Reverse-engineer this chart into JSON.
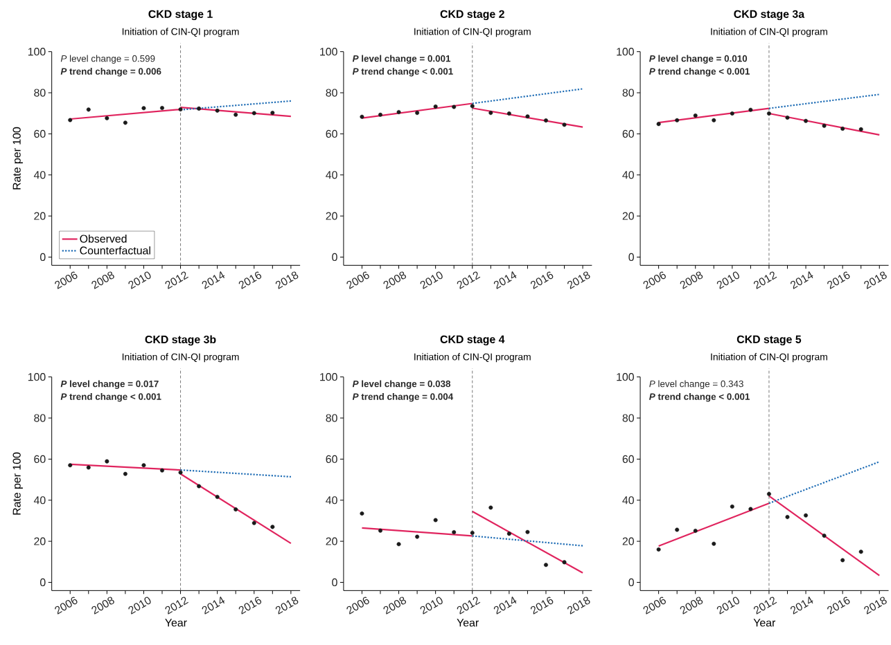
{
  "chart_data": [
    {
      "type": "line",
      "title": "CKD stage 1",
      "ylabel": "Rate per 100",
      "xlim": [
        2005,
        2018.5
      ],
      "ylim": [
        -4,
        100
      ],
      "yticks": [
        0,
        20,
        40,
        60,
        80,
        100
      ],
      "xticks": [
        2006,
        {
          "value": 2007,
          "label": null
        },
        2008,
        {
          "value": 2009,
          "label": null
        },
        2010,
        {
          "value": 2011,
          "label": null
        },
        2012,
        {
          "value": 2013,
          "label": null
        },
        2014,
        {
          "value": 2015,
          "label": null
        },
        2016,
        {
          "value": 2017,
          "label": null
        },
        2018
      ],
      "annotations": [
        "*P* level change = 0.599",
        "***P* trend change = 0.006**"
      ],
      "ref_lines": [
        {
          "axis": "x",
          "value": 2012,
          "label": "Initiation of CIN-QI program",
          "color": "#555555",
          "line_style": "dashed"
        }
      ],
      "legend": "bottom left",
      "series": [
        {
          "type": "scatter",
          "color": "#1a1a1a",
          "marker": "circle",
          "x": [
            2006,
            2007,
            2008,
            2009,
            2010,
            2011,
            2012,
            2013,
            2014,
            2015,
            2016,
            2017
          ],
          "values": [
            66.7,
            71.8,
            67.6,
            65.4,
            72.5,
            72.6,
            71.9,
            72.3,
            71.3,
            69.3,
            70.1,
            70.2
          ]
        },
        {
          "name": "Observed",
          "color": "#e0245e",
          "marker": "none",
          "line_style": "solid",
          "x": [
            2006,
            2012,
            null,
            2012,
            2018
          ],
          "values": [
            67.2,
            71.9,
            null,
            72.9,
            68.5
          ]
        },
        {
          "name": "Counterfactual",
          "color": "#1f6db5",
          "marker": "none",
          "line_style": "dotted",
          "x": [
            2012,
            2018
          ],
          "values": [
            71.7,
            76.0
          ]
        }
      ]
    },
    {
      "type": "line",
      "title": "CKD stage 2",
      "xlim": [
        2005,
        2018.5
      ],
      "ylim": [
        -4,
        100
      ],
      "yticks": [
        0,
        20,
        40,
        60,
        80,
        100
      ],
      "xticks": [
        2006,
        {
          "value": 2007,
          "label": null
        },
        2008,
        {
          "value": 2009,
          "label": null
        },
        2010,
        {
          "value": 2011,
          "label": null
        },
        2012,
        {
          "value": 2013,
          "label": null
        },
        2014,
        {
          "value": 2015,
          "label": null
        },
        2016,
        {
          "value": 2017,
          "label": null
        },
        2018
      ],
      "annotations": [
        "***P* level change = 0.001**",
        "***P* trend change < 0.001**"
      ],
      "ref_lines": [
        {
          "axis": "x",
          "value": 2012,
          "label": "Initiation of CIN-QI program",
          "color": "#555555",
          "line_style": "dashed"
        }
      ],
      "series": [
        {
          "type": "scatter",
          "color": "#1a1a1a",
          "marker": "circle",
          "x": [
            2006,
            2007,
            2008,
            2009,
            2010,
            2011,
            2012,
            2013,
            2014,
            2015,
            2016,
            2017
          ],
          "values": [
            68.3,
            69.3,
            70.6,
            70.2,
            73.3,
            73.1,
            73.5,
            70.2,
            69.9,
            68.5,
            66.5,
            64.4
          ]
        },
        {
          "color": "#e0245e",
          "marker": "none",
          "line_style": "solid",
          "x": [
            2006,
            2012,
            null,
            2012,
            2018
          ],
          "values": [
            67.7,
            74.8,
            null,
            72.5,
            63.3
          ]
        },
        {
          "color": "#1f6db5",
          "marker": "none",
          "line_style": "dotted",
          "x": [
            2012,
            2018
          ],
          "values": [
            74.8,
            81.9
          ]
        }
      ]
    },
    {
      "type": "line",
      "title": "CKD stage 3a",
      "xlim": [
        2005,
        2018.5
      ],
      "ylim": [
        -4,
        100
      ],
      "yticks": [
        0,
        20,
        40,
        60,
        80,
        100
      ],
      "xticks": [
        2006,
        {
          "value": 2007,
          "label": null
        },
        2008,
        {
          "value": 2009,
          "label": null
        },
        2010,
        {
          "value": 2011,
          "label": null
        },
        2012,
        {
          "value": 2013,
          "label": null
        },
        2014,
        {
          "value": 2015,
          "label": null
        },
        2016,
        {
          "value": 2017,
          "label": null
        },
        2018
      ],
      "annotations": [
        "***P* level change = 0.010**",
        "***P* trend change < 0.001**"
      ],
      "ref_lines": [
        {
          "axis": "x",
          "value": 2012,
          "label": "Initiation of CIN-QI program",
          "color": "#555555",
          "line_style": "dashed"
        }
      ],
      "series": [
        {
          "type": "scatter",
          "color": "#1a1a1a",
          "marker": "circle",
          "x": [
            2006,
            2007,
            2008,
            2009,
            2010,
            2011,
            2012,
            2013,
            2014,
            2015,
            2016,
            2017
          ],
          "values": [
            64.8,
            66.6,
            68.9,
            66.6,
            69.9,
            71.7,
            69.9,
            67.9,
            66.3,
            63.9,
            62.5,
            62.2
          ]
        },
        {
          "color": "#e0245e",
          "marker": "none",
          "line_style": "solid",
          "x": [
            2006,
            2012,
            null,
            2012,
            2018
          ],
          "values": [
            65.5,
            72.4,
            null,
            69.9,
            59.5
          ]
        },
        {
          "color": "#1f6db5",
          "marker": "none",
          "line_style": "dotted",
          "x": [
            2012,
            2018
          ],
          "values": [
            72.4,
            79.2
          ]
        }
      ]
    },
    {
      "type": "line",
      "title": "CKD stage 3b",
      "xlabel": "Year",
      "ylabel": "Rate per 100",
      "xlim": [
        2005,
        2018.5
      ],
      "ylim": [
        -4,
        100
      ],
      "yticks": [
        0,
        20,
        40,
        60,
        80,
        100
      ],
      "xticks": [
        2006,
        {
          "value": 2007,
          "label": null
        },
        2008,
        {
          "value": 2009,
          "label": null
        },
        2010,
        {
          "value": 2011,
          "label": null
        },
        2012,
        {
          "value": 2013,
          "label": null
        },
        2014,
        {
          "value": 2015,
          "label": null
        },
        2016,
        {
          "value": 2017,
          "label": null
        },
        2018
      ],
      "annotations": [
        "***P* level change = 0.017**",
        "***P* trend change < 0.001**"
      ],
      "ref_lines": [
        {
          "axis": "x",
          "value": 2012,
          "label": "Initiation of CIN-QI program",
          "color": "#555555",
          "line_style": "dashed"
        }
      ],
      "series": [
        {
          "type": "scatter",
          "color": "#1a1a1a",
          "marker": "circle",
          "x": [
            2006,
            2007,
            2008,
            2009,
            2010,
            2011,
            2012,
            2013,
            2014,
            2015,
            2016,
            2017
          ],
          "values": [
            57.0,
            55.9,
            58.9,
            52.8,
            57.0,
            54.5,
            53.5,
            46.8,
            41.6,
            35.5,
            28.9,
            27.0
          ]
        },
        {
          "color": "#e0245e",
          "marker": "none",
          "line_style": "solid",
          "x": [
            2006,
            2012,
            null,
            2012,
            2018
          ],
          "values": [
            57.5,
            54.7,
            null,
            52.8,
            19.0
          ]
        },
        {
          "color": "#1f6db5",
          "marker": "none",
          "line_style": "dotted",
          "x": [
            2012,
            2018
          ],
          "values": [
            54.7,
            51.4
          ]
        }
      ]
    },
    {
      "type": "line",
      "title": "CKD stage 4",
      "xlabel": "Year",
      "xlim": [
        2005,
        2018.5
      ],
      "ylim": [
        -4,
        100
      ],
      "yticks": [
        0,
        20,
        40,
        60,
        80,
        100
      ],
      "xticks": [
        2006,
        {
          "value": 2007,
          "label": null
        },
        2008,
        {
          "value": 2009,
          "label": null
        },
        2010,
        {
          "value": 2011,
          "label": null
        },
        2012,
        {
          "value": 2013,
          "label": null
        },
        2014,
        {
          "value": 2015,
          "label": null
        },
        2016,
        {
          "value": 2017,
          "label": null
        },
        2018
      ],
      "annotations": [
        "***P* level change = 0.038**",
        "***P* trend change = 0.004**"
      ],
      "ref_lines": [
        {
          "axis": "x",
          "value": 2012,
          "label": "Initiation of CIN-QI program",
          "color": "#555555",
          "line_style": "dashed"
        }
      ],
      "series": [
        {
          "type": "scatter",
          "color": "#1a1a1a",
          "marker": "circle",
          "x": [
            2006,
            2007,
            2008,
            2009,
            2010,
            2011,
            2012,
            2013,
            2014,
            2015,
            2016,
            2017
          ],
          "values": [
            33.5,
            25.2,
            18.6,
            22.2,
            30.3,
            24.4,
            24.1,
            36.4,
            23.7,
            24.5,
            8.5,
            9.8
          ]
        },
        {
          "color": "#e0245e",
          "marker": "none",
          "line_style": "solid",
          "x": [
            2006,
            2012,
            null,
            2012,
            2018
          ],
          "values": [
            26.5,
            22.6,
            null,
            34.5,
            4.6
          ]
        },
        {
          "color": "#1f6db5",
          "marker": "none",
          "line_style": "dotted",
          "x": [
            2012,
            2018
          ],
          "values": [
            22.6,
            17.8
          ]
        }
      ]
    },
    {
      "type": "line",
      "title": "CKD stage 5",
      "xlabel": "Year",
      "xlim": [
        2005,
        2018.5
      ],
      "ylim": [
        -4,
        100
      ],
      "yticks": [
        0,
        20,
        40,
        60,
        80,
        100
      ],
      "xticks": [
        2006,
        {
          "value": 2007,
          "label": null
        },
        2008,
        {
          "value": 2009,
          "label": null
        },
        2010,
        {
          "value": 2011,
          "label": null
        },
        2012,
        {
          "value": 2013,
          "label": null
        },
        2014,
        {
          "value": 2015,
          "label": null
        },
        2016,
        {
          "value": 2017,
          "label": null
        },
        2018
      ],
      "annotations": [
        "*P* level change = 0.343",
        "***P* trend change < 0.001**"
      ],
      "ref_lines": [
        {
          "axis": "x",
          "value": 2012,
          "label": "Initiation of CIN-QI program",
          "color": "#555555",
          "line_style": "dashed"
        }
      ],
      "series": [
        {
          "type": "scatter",
          "color": "#1a1a1a",
          "marker": "circle",
          "x": [
            2006,
            2007,
            2008,
            2009,
            2010,
            2011,
            2012,
            2013,
            2014,
            2015,
            2016,
            2017
          ],
          "values": [
            16.0,
            25.6,
            25.1,
            18.8,
            36.9,
            35.7,
            43.0,
            31.8,
            32.6,
            22.7,
            10.8,
            14.9
          ]
        },
        {
          "color": "#e0245e",
          "marker": "none",
          "line_style": "solid",
          "x": [
            2006,
            2012,
            null,
            2012,
            2018
          ],
          "values": [
            17.7,
            38.5,
            null,
            42.1,
            3.3
          ]
        },
        {
          "color": "#1f6db5",
          "marker": "none",
          "line_style": "dotted",
          "x": [
            2012,
            2018
          ],
          "values": [
            38.5,
            58.7
          ]
        }
      ]
    }
  ]
}
